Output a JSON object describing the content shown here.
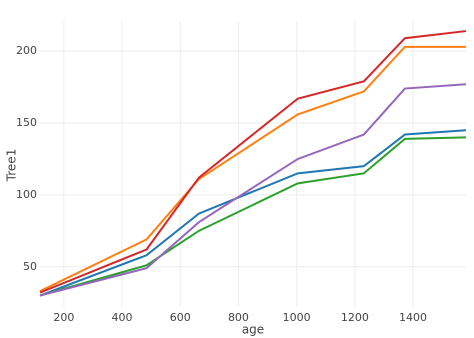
{
  "chart_data": {
    "type": "line",
    "x_label": "age",
    "y_label": "Tree1",
    "x": [
      118,
      484,
      664,
      1004,
      1231,
      1372,
      1582
    ],
    "series": [
      {
        "color": "#1f77b4",
        "values": [
          30,
          58,
          87,
          115,
          120,
          142,
          145
        ]
      },
      {
        "color": "#ff7f0e",
        "values": [
          33,
          69,
          111,
          156,
          172,
          203,
          203
        ]
      },
      {
        "color": "#2ca02c",
        "values": [
          30,
          51,
          75,
          108,
          115,
          139,
          140
        ]
      },
      {
        "color": "#d62728",
        "values": [
          32,
          62,
          112,
          167,
          179,
          209,
          214
        ]
      },
      {
        "color": "#9467bd",
        "values": [
          30,
          49,
          81,
          125,
          142,
          174,
          177
        ]
      }
    ],
    "xlim": [
      118,
      1582
    ],
    "xticks": [
      200,
      400,
      600,
      800,
      1000,
      1200,
      1400
    ],
    "ylim": [
      22,
      221
    ],
    "yticks": [
      50,
      100,
      150,
      200
    ],
    "grid": true
  }
}
